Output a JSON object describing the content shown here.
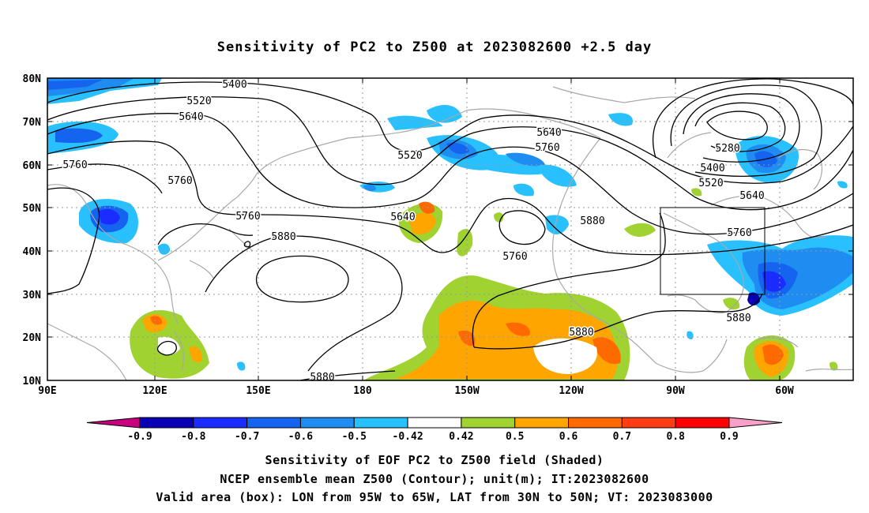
{
  "title": "Sensitivity of PC2 to Z500 at 2023082600 +2.5 day",
  "lat_labels": [
    "80N",
    "70N",
    "60N",
    "50N",
    "40N",
    "30N",
    "20N",
    "10N"
  ],
  "lon_labels": [
    "90E",
    "120E",
    "150E",
    "180",
    "150W",
    "120W",
    "90W",
    "60W"
  ],
  "contour_labels": [
    {
      "text": "5400"
    },
    {
      "text": "5520"
    },
    {
      "text": "5640"
    },
    {
      "text": "5760"
    },
    {
      "text": "5760"
    },
    {
      "text": "5520"
    },
    {
      "text": "5640"
    },
    {
      "text": "5760"
    },
    {
      "text": "5280"
    },
    {
      "text": "5400"
    },
    {
      "text": "5520"
    },
    {
      "text": "5640"
    },
    {
      "text": "5760"
    },
    {
      "text": "5640"
    },
    {
      "text": "5760"
    },
    {
      "text": "5880"
    },
    {
      "text": "5880"
    },
    {
      "text": "5760"
    },
    {
      "text": "5880"
    },
    {
      "text": "5880"
    },
    {
      "text": "5880"
    }
  ],
  "colorbar": {
    "labels": [
      "-0.9",
      "-0.8",
      "-0.7",
      "-0.6",
      "-0.5",
      "-0.42",
      "0.42",
      "0.5",
      "0.6",
      "0.7",
      "0.8",
      "0.9"
    ],
    "colors": [
      "#c8007e",
      "#0a00b4",
      "#1a2cff",
      "#1464f0",
      "#1e8cf0",
      "#28c0ff",
      "#ffffff",
      "#a0d232",
      "#ffa500",
      "#ff6a00",
      "#ff3c14",
      "#ff0000",
      "#f8a0c8"
    ]
  },
  "captions": [
    "Sensitivity of EOF PC2 to Z500 field (Shaded)",
    "NCEP ensemble mean Z500 (Contour); unit(m); IT:2023082600",
    "Valid area (box): LON from 95W to 65W, LAT from 30N to 50N; VT: 2023083000"
  ]
}
